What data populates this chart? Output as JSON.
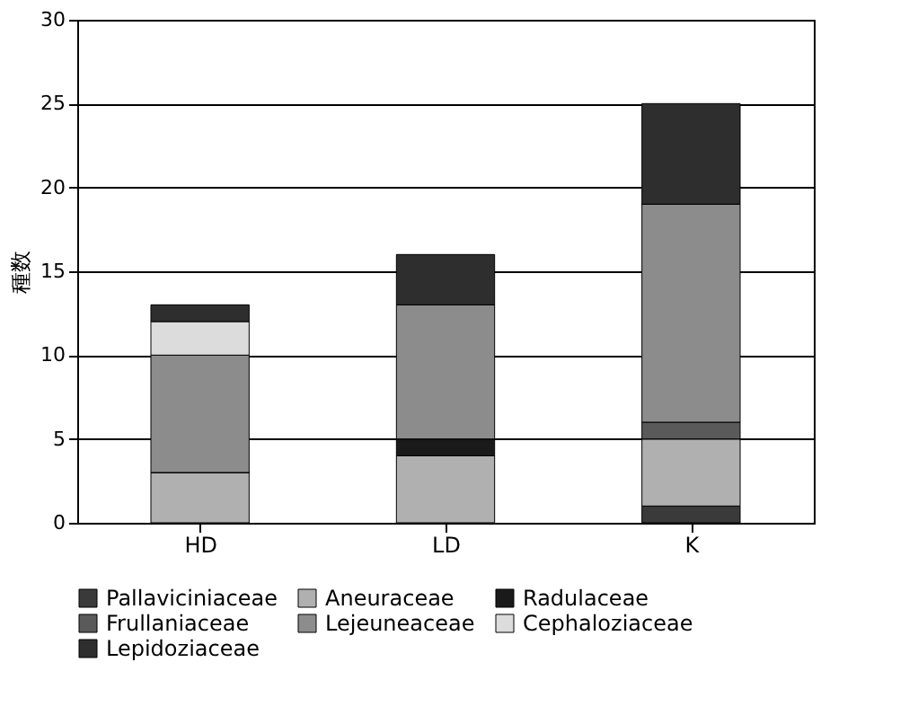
{
  "chart_data": {
    "type": "bar",
    "stacked": true,
    "ylabel": "種数",
    "categories": [
      "HD",
      "LD",
      "K"
    ],
    "series": [
      {
        "name": "Pallaviciniaceae",
        "color": "#3a3a3a",
        "values": [
          0,
          0,
          1
        ]
      },
      {
        "name": "Aneuraceae",
        "color": "#b0b0b0",
        "values": [
          3,
          4,
          4
        ]
      },
      {
        "name": "Radulaceae",
        "color": "#1a1a1a",
        "values": [
          0,
          1,
          0
        ]
      },
      {
        "name": "Frullaniaceae",
        "color": "#5a5a5a",
        "values": [
          0,
          0,
          1
        ]
      },
      {
        "name": "Lejeuneaceae",
        "color": "#8c8c8c",
        "values": [
          7,
          8,
          13
        ]
      },
      {
        "name": "Cephaloziaceae",
        "color": "#dcdcdc",
        "values": [
          2,
          0,
          0
        ]
      },
      {
        "name": "Lepidoziaceae",
        "color": "#2e2e2e",
        "values": [
          1,
          3,
          6
        ]
      }
    ],
    "ylim": [
      0,
      30
    ],
    "yticks": [
      0,
      5,
      10,
      15,
      20,
      25,
      30
    ],
    "grid": "y",
    "legend": "bottom"
  }
}
